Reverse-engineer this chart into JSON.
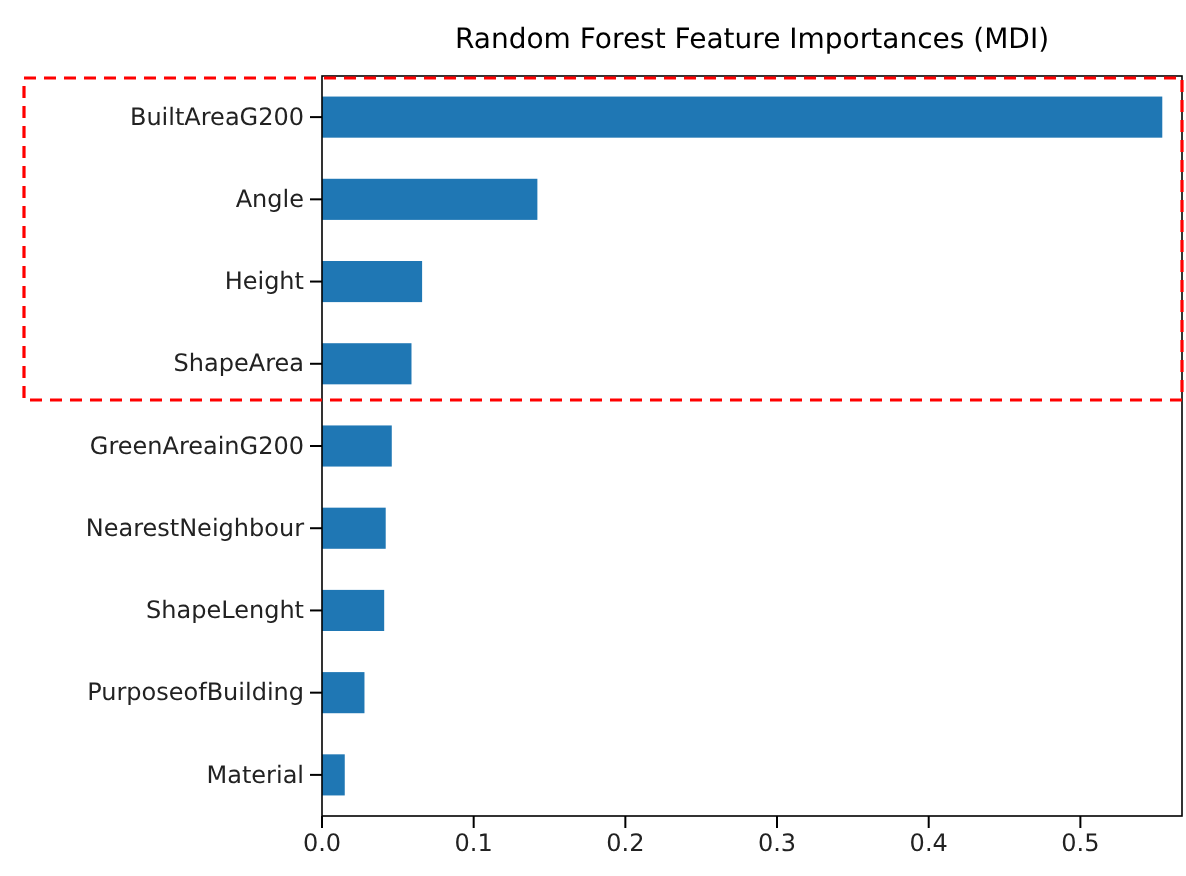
{
  "chart_data": {
    "type": "bar",
    "orientation": "horizontal",
    "title": "Random Forest Feature Importances (MDI)",
    "categories": [
      "BuiltAreaG200",
      "Angle",
      "Height",
      "ShapeArea",
      "GreenAreainG200",
      "NearestNeighbour",
      "ShapeLenght",
      "PurposeofBuilding",
      "Material"
    ],
    "values": [
      0.554,
      0.142,
      0.066,
      0.059,
      0.046,
      0.042,
      0.041,
      0.028,
      0.015
    ],
    "color": "#1f77b4",
    "xlim": [
      0,
      0.567
    ],
    "xticks": [
      {
        "value": 0,
        "label": "0.0"
      },
      0.1,
      0.2,
      0.3,
      0.4,
      0.5
    ],
    "grid": false
  }
}
